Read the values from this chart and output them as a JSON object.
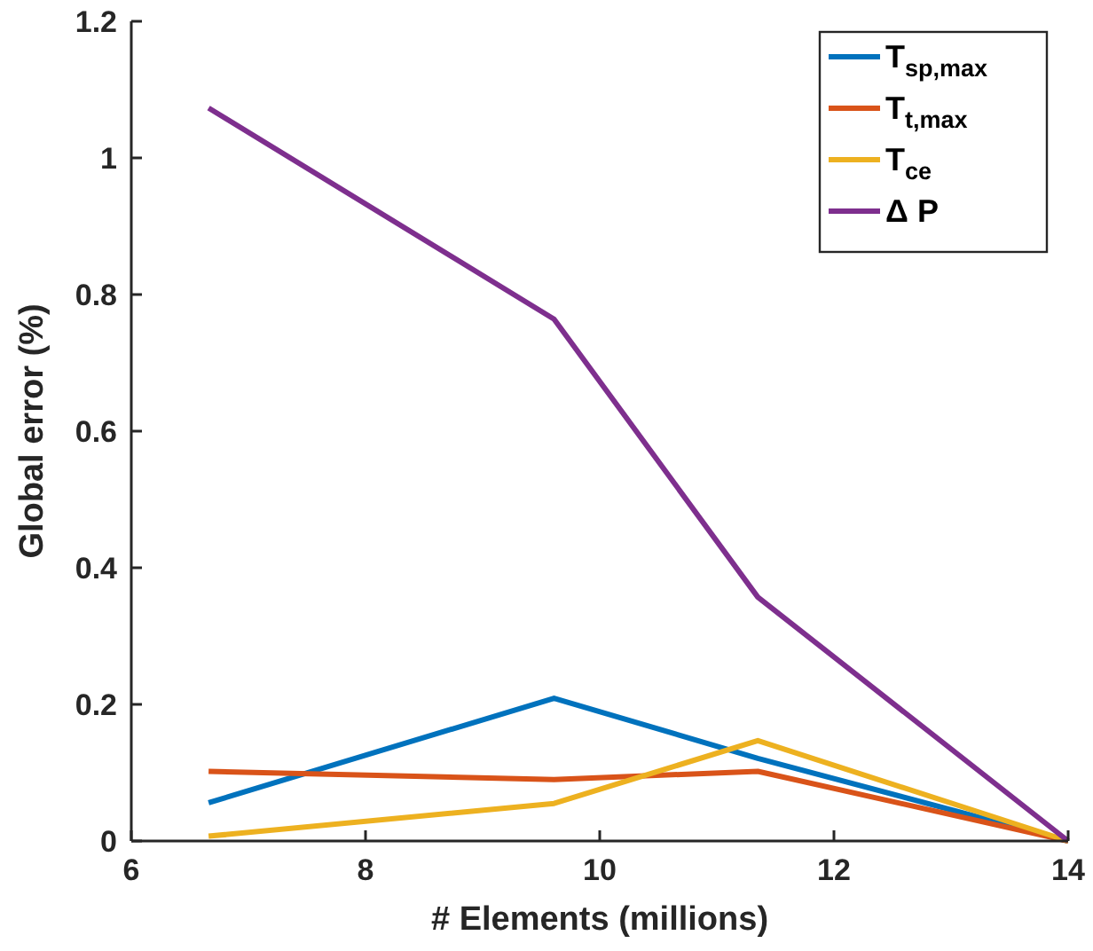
{
  "chart_data": {
    "type": "line",
    "xlabel": "# Elements (millions)",
    "ylabel": "Global error (%)",
    "x": [
      6.66,
      9.61,
      11.35,
      14
    ],
    "xlim": [
      6,
      14
    ],
    "xticks": [
      6,
      8,
      10,
      12,
      14
    ],
    "ylim": [
      0,
      1.2
    ],
    "yticks": [
      0,
      0.2,
      0.4,
      0.6,
      0.8,
      1,
      1.2
    ],
    "legend": "top right",
    "grid": false,
    "marker": "none",
    "line_style": "solid",
    "series": [
      {
        "name": "T$_{sp,max}$",
        "color": "#0072bd",
        "values": [
          0.056,
          0.209,
          0.121,
          0
        ]
      },
      {
        "name": "T$_{t,max}$",
        "color": "#d95319",
        "values": [
          0.102,
          0.09,
          0.102,
          0
        ]
      },
      {
        "name": "T$_{ce}$",
        "color": "#edb120",
        "values": [
          0.007,
          0.055,
          0.147,
          0
        ]
      },
      {
        "name": "Δ P",
        "color": "#7e2f8e",
        "values": [
          1.073,
          0.764,
          0.357,
          0
        ]
      }
    ]
  }
}
